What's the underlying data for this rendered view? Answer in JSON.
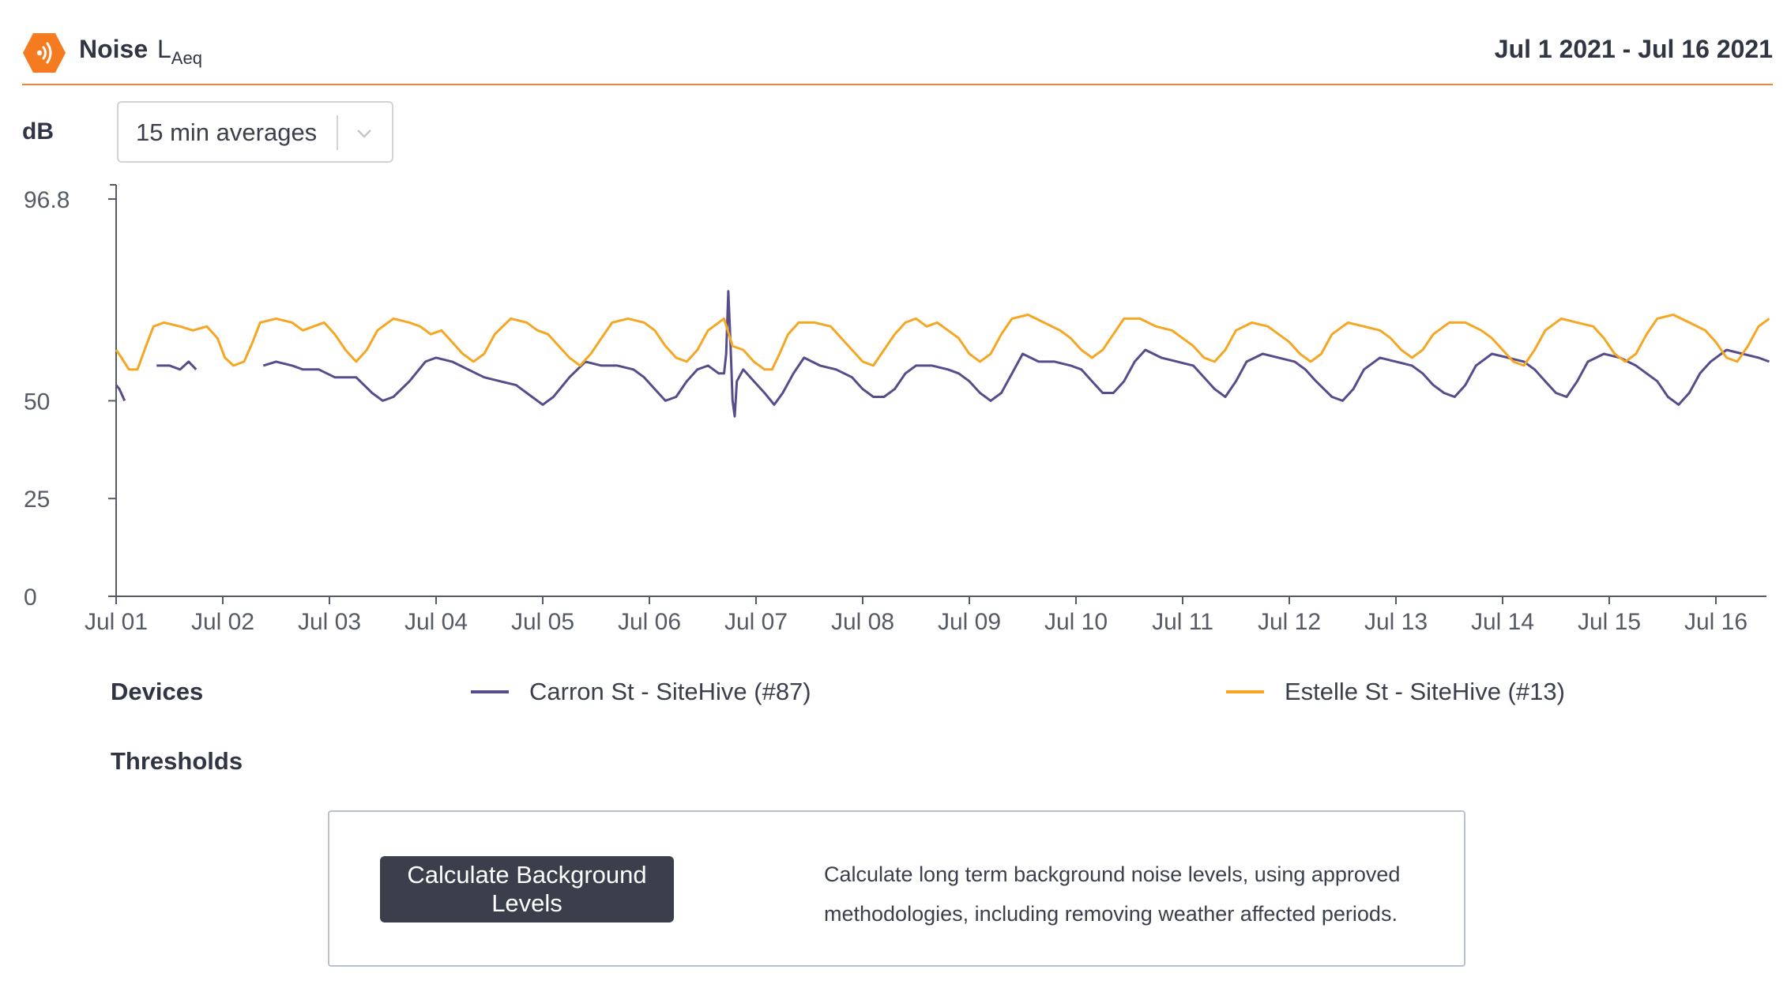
{
  "header": {
    "title": "Noise",
    "metric_main": "L",
    "metric_sub": "Aeq",
    "date_range": "Jul 1 2021 - Jul 16 2021",
    "logo_icon": "sound-wave-hexagon-icon",
    "accent_color": "#f47b20"
  },
  "controls": {
    "unit_label": "dB",
    "averaging_select": {
      "value": "15 min averages",
      "icon": "chevron-down-icon"
    }
  },
  "chart_data": {
    "type": "line",
    "title": "",
    "xlabel": "",
    "ylabel": "dB",
    "ylim": [
      0,
      96.8
    ],
    "xlim": [
      0,
      15.5
    ],
    "y_ticks": [
      "0",
      "25",
      "50",
      "96.8"
    ],
    "x_ticks": [
      "Jul 01",
      "Jul 02",
      "Jul 03",
      "Jul 04",
      "Jul 05",
      "Jul 06",
      "Jul 07",
      "Jul 08",
      "Jul 09",
      "Jul 10",
      "Jul 11",
      "Jul 12",
      "Jul 13",
      "Jul 14",
      "Jul 15",
      "Jul 16"
    ],
    "grid": false,
    "legend_position": "bottom",
    "x_unit": "days since Jul 01",
    "series": [
      {
        "name": "Carron St - SiteHive (#87)",
        "color": "#584b8c",
        "points": [
          [
            0,
            54
          ],
          [
            0.03,
            53
          ],
          [
            0.08,
            50
          ],
          [
            null,
            null
          ],
          [
            0.38,
            59
          ],
          [
            0.5,
            59
          ],
          [
            0.6,
            58
          ],
          [
            0.68,
            60
          ],
          [
            0.75,
            58
          ],
          [
            null,
            null
          ],
          [
            1.38,
            59
          ],
          [
            1.5,
            60
          ],
          [
            1.65,
            59
          ],
          [
            1.75,
            58
          ],
          [
            1.9,
            58
          ],
          [
            2.05,
            56
          ],
          [
            2.25,
            56
          ],
          [
            2.4,
            52
          ],
          [
            2.5,
            50
          ],
          [
            2.6,
            51
          ],
          [
            2.75,
            55
          ],
          [
            2.9,
            60
          ],
          [
            3.0,
            61
          ],
          [
            3.15,
            60
          ],
          [
            3.3,
            58
          ],
          [
            3.45,
            56
          ],
          [
            3.6,
            55
          ],
          [
            3.75,
            54
          ],
          [
            3.9,
            51
          ],
          [
            4.0,
            49
          ],
          [
            4.1,
            51
          ],
          [
            4.25,
            56
          ],
          [
            4.4,
            60
          ],
          [
            4.55,
            59
          ],
          [
            4.7,
            59
          ],
          [
            4.85,
            58
          ],
          [
            4.95,
            56
          ],
          [
            5.05,
            53
          ],
          [
            5.15,
            50
          ],
          [
            5.25,
            51
          ],
          [
            5.35,
            55
          ],
          [
            5.45,
            58
          ],
          [
            5.55,
            59
          ],
          [
            5.65,
            57
          ],
          [
            5.7,
            57
          ],
          [
            5.72,
            62
          ],
          [
            5.74,
            78
          ],
          [
            5.76,
            65
          ],
          [
            5.78,
            50
          ],
          [
            5.8,
            46
          ],
          [
            5.82,
            55
          ],
          [
            5.88,
            58
          ],
          [
            5.98,
            55
          ],
          [
            6.08,
            52
          ],
          [
            6.17,
            49
          ],
          [
            6.25,
            52
          ],
          [
            6.35,
            57
          ],
          [
            6.45,
            61
          ],
          [
            6.6,
            59
          ],
          [
            6.75,
            58
          ],
          [
            6.9,
            56
          ],
          [
            7.0,
            53
          ],
          [
            7.1,
            51
          ],
          [
            7.2,
            51
          ],
          [
            7.3,
            53
          ],
          [
            7.4,
            57
          ],
          [
            7.5,
            59
          ],
          [
            7.65,
            59
          ],
          [
            7.8,
            58
          ],
          [
            7.9,
            57
          ],
          [
            8.0,
            55
          ],
          [
            8.1,
            52
          ],
          [
            8.2,
            50
          ],
          [
            8.3,
            52
          ],
          [
            8.4,
            57
          ],
          [
            8.5,
            62
          ],
          [
            8.65,
            60
          ],
          [
            8.8,
            60
          ],
          [
            8.95,
            59
          ],
          [
            9.05,
            58
          ],
          [
            9.15,
            55
          ],
          [
            9.25,
            52
          ],
          [
            9.35,
            52
          ],
          [
            9.45,
            55
          ],
          [
            9.55,
            60
          ],
          [
            9.65,
            63
          ],
          [
            9.8,
            61
          ],
          [
            9.95,
            60
          ],
          [
            10.1,
            59
          ],
          [
            10.2,
            56
          ],
          [
            10.3,
            53
          ],
          [
            10.4,
            51
          ],
          [
            10.5,
            55
          ],
          [
            10.6,
            60
          ],
          [
            10.75,
            62
          ],
          [
            10.9,
            61
          ],
          [
            11.05,
            60
          ],
          [
            11.15,
            58
          ],
          [
            11.25,
            55
          ],
          [
            11.4,
            51
          ],
          [
            11.5,
            50
          ],
          [
            11.6,
            53
          ],
          [
            11.7,
            58
          ],
          [
            11.85,
            61
          ],
          [
            12.0,
            60
          ],
          [
            12.15,
            59
          ],
          [
            12.25,
            57
          ],
          [
            12.35,
            54
          ],
          [
            12.45,
            52
          ],
          [
            12.55,
            51
          ],
          [
            12.65,
            54
          ],
          [
            12.75,
            59
          ],
          [
            12.9,
            62
          ],
          [
            13.05,
            61
          ],
          [
            13.2,
            60
          ],
          [
            13.3,
            58
          ],
          [
            13.4,
            55
          ],
          [
            13.5,
            52
          ],
          [
            13.6,
            51
          ],
          [
            13.7,
            55
          ],
          [
            13.8,
            60
          ],
          [
            13.95,
            62
          ],
          [
            14.1,
            61
          ],
          [
            14.25,
            59
          ],
          [
            14.35,
            57
          ],
          [
            14.45,
            55
          ],
          [
            14.55,
            51
          ],
          [
            14.65,
            49
          ],
          [
            14.75,
            52
          ],
          [
            14.85,
            57
          ],
          [
            14.95,
            60
          ],
          [
            15.1,
            63
          ],
          [
            15.25,
            62
          ],
          [
            15.4,
            61
          ],
          [
            15.5,
            60
          ]
        ]
      },
      {
        "name": "Estelle St - SiteHive (#13)",
        "color": "#f5a623",
        "points": [
          [
            0,
            63
          ],
          [
            0.05,
            61
          ],
          [
            0.12,
            58
          ],
          [
            0.2,
            58
          ],
          [
            0.28,
            64
          ],
          [
            0.35,
            69
          ],
          [
            0.45,
            70
          ],
          [
            0.6,
            69
          ],
          [
            0.72,
            68
          ],
          [
            0.85,
            69
          ],
          [
            0.95,
            66
          ],
          [
            1.02,
            61
          ],
          [
            1.1,
            59
          ],
          [
            1.2,
            60
          ],
          [
            1.28,
            65
          ],
          [
            1.35,
            70
          ],
          [
            1.5,
            71
          ],
          [
            1.65,
            70
          ],
          [
            1.75,
            68
          ],
          [
            1.85,
            69
          ],
          [
            1.95,
            70
          ],
          [
            2.05,
            67
          ],
          [
            2.15,
            63
          ],
          [
            2.25,
            60
          ],
          [
            2.35,
            63
          ],
          [
            2.45,
            68
          ],
          [
            2.6,
            71
          ],
          [
            2.75,
            70
          ],
          [
            2.85,
            69
          ],
          [
            2.95,
            67
          ],
          [
            3.05,
            68
          ],
          [
            3.15,
            65
          ],
          [
            3.25,
            62
          ],
          [
            3.35,
            60
          ],
          [
            3.45,
            62
          ],
          [
            3.55,
            67
          ],
          [
            3.7,
            71
          ],
          [
            3.85,
            70
          ],
          [
            3.95,
            68
          ],
          [
            4.05,
            67
          ],
          [
            4.15,
            64
          ],
          [
            4.25,
            61
          ],
          [
            4.35,
            59
          ],
          [
            4.45,
            62
          ],
          [
            4.55,
            66
          ],
          [
            4.65,
            70
          ],
          [
            4.8,
            71
          ],
          [
            4.95,
            70
          ],
          [
            5.05,
            68
          ],
          [
            5.15,
            64
          ],
          [
            5.25,
            61
          ],
          [
            5.35,
            60
          ],
          [
            5.45,
            63
          ],
          [
            5.55,
            68
          ],
          [
            5.7,
            71
          ],
          [
            5.78,
            64
          ],
          [
            5.88,
            63
          ],
          [
            5.98,
            60
          ],
          [
            6.08,
            58
          ],
          [
            6.15,
            58
          ],
          [
            6.22,
            62
          ],
          [
            6.3,
            67
          ],
          [
            6.4,
            70
          ],
          [
            6.55,
            70
          ],
          [
            6.7,
            69
          ],
          [
            6.8,
            66
          ],
          [
            6.9,
            63
          ],
          [
            7.0,
            60
          ],
          [
            7.1,
            59
          ],
          [
            7.2,
            63
          ],
          [
            7.3,
            67
          ],
          [
            7.4,
            70
          ],
          [
            7.5,
            71
          ],
          [
            7.6,
            69
          ],
          [
            7.7,
            70
          ],
          [
            7.8,
            68
          ],
          [
            7.9,
            66
          ],
          [
            8.0,
            62
          ],
          [
            8.1,
            60
          ],
          [
            8.2,
            62
          ],
          [
            8.3,
            67
          ],
          [
            8.4,
            71
          ],
          [
            8.55,
            72
          ],
          [
            8.7,
            70
          ],
          [
            8.85,
            68
          ],
          [
            8.95,
            66
          ],
          [
            9.05,
            63
          ],
          [
            9.15,
            61
          ],
          [
            9.25,
            63
          ],
          [
            9.35,
            67
          ],
          [
            9.45,
            71
          ],
          [
            9.6,
            71
          ],
          [
            9.75,
            69
          ],
          [
            9.9,
            68
          ],
          [
            10.0,
            66
          ],
          [
            10.1,
            64
          ],
          [
            10.2,
            61
          ],
          [
            10.3,
            60
          ],
          [
            10.4,
            63
          ],
          [
            10.5,
            68
          ],
          [
            10.65,
            70
          ],
          [
            10.8,
            69
          ],
          [
            10.9,
            67
          ],
          [
            11.0,
            65
          ],
          [
            11.1,
            62
          ],
          [
            11.2,
            60
          ],
          [
            11.3,
            62
          ],
          [
            11.4,
            67
          ],
          [
            11.55,
            70
          ],
          [
            11.7,
            69
          ],
          [
            11.85,
            68
          ],
          [
            11.95,
            66
          ],
          [
            12.05,
            63
          ],
          [
            12.15,
            61
          ],
          [
            12.25,
            63
          ],
          [
            12.35,
            67
          ],
          [
            12.5,
            70
          ],
          [
            12.65,
            70
          ],
          [
            12.8,
            68
          ],
          [
            12.9,
            66
          ],
          [
            13.0,
            63
          ],
          [
            13.1,
            60
          ],
          [
            13.2,
            59
          ],
          [
            13.3,
            63
          ],
          [
            13.4,
            68
          ],
          [
            13.55,
            71
          ],
          [
            13.7,
            70
          ],
          [
            13.85,
            69
          ],
          [
            13.95,
            66
          ],
          [
            14.05,
            62
          ],
          [
            14.15,
            60
          ],
          [
            14.25,
            62
          ],
          [
            14.35,
            67
          ],
          [
            14.45,
            71
          ],
          [
            14.6,
            72
          ],
          [
            14.75,
            70
          ],
          [
            14.9,
            68
          ],
          [
            15.0,
            65
          ],
          [
            15.1,
            61
          ],
          [
            15.2,
            60
          ],
          [
            15.3,
            64
          ],
          [
            15.4,
            69
          ],
          [
            15.5,
            71
          ]
        ]
      }
    ]
  },
  "legend": {
    "title": "Devices",
    "items": [
      "Carron St - SiteHive (#87)",
      "Estelle St - SiteHive (#13)"
    ]
  },
  "thresholds": {
    "title": "Thresholds"
  },
  "background_panel": {
    "button_label": "Calculate Background Levels",
    "description_line1": "Calculate long term background noise levels, using approved",
    "description_line2": "methodologies, including removing weather affected periods."
  }
}
